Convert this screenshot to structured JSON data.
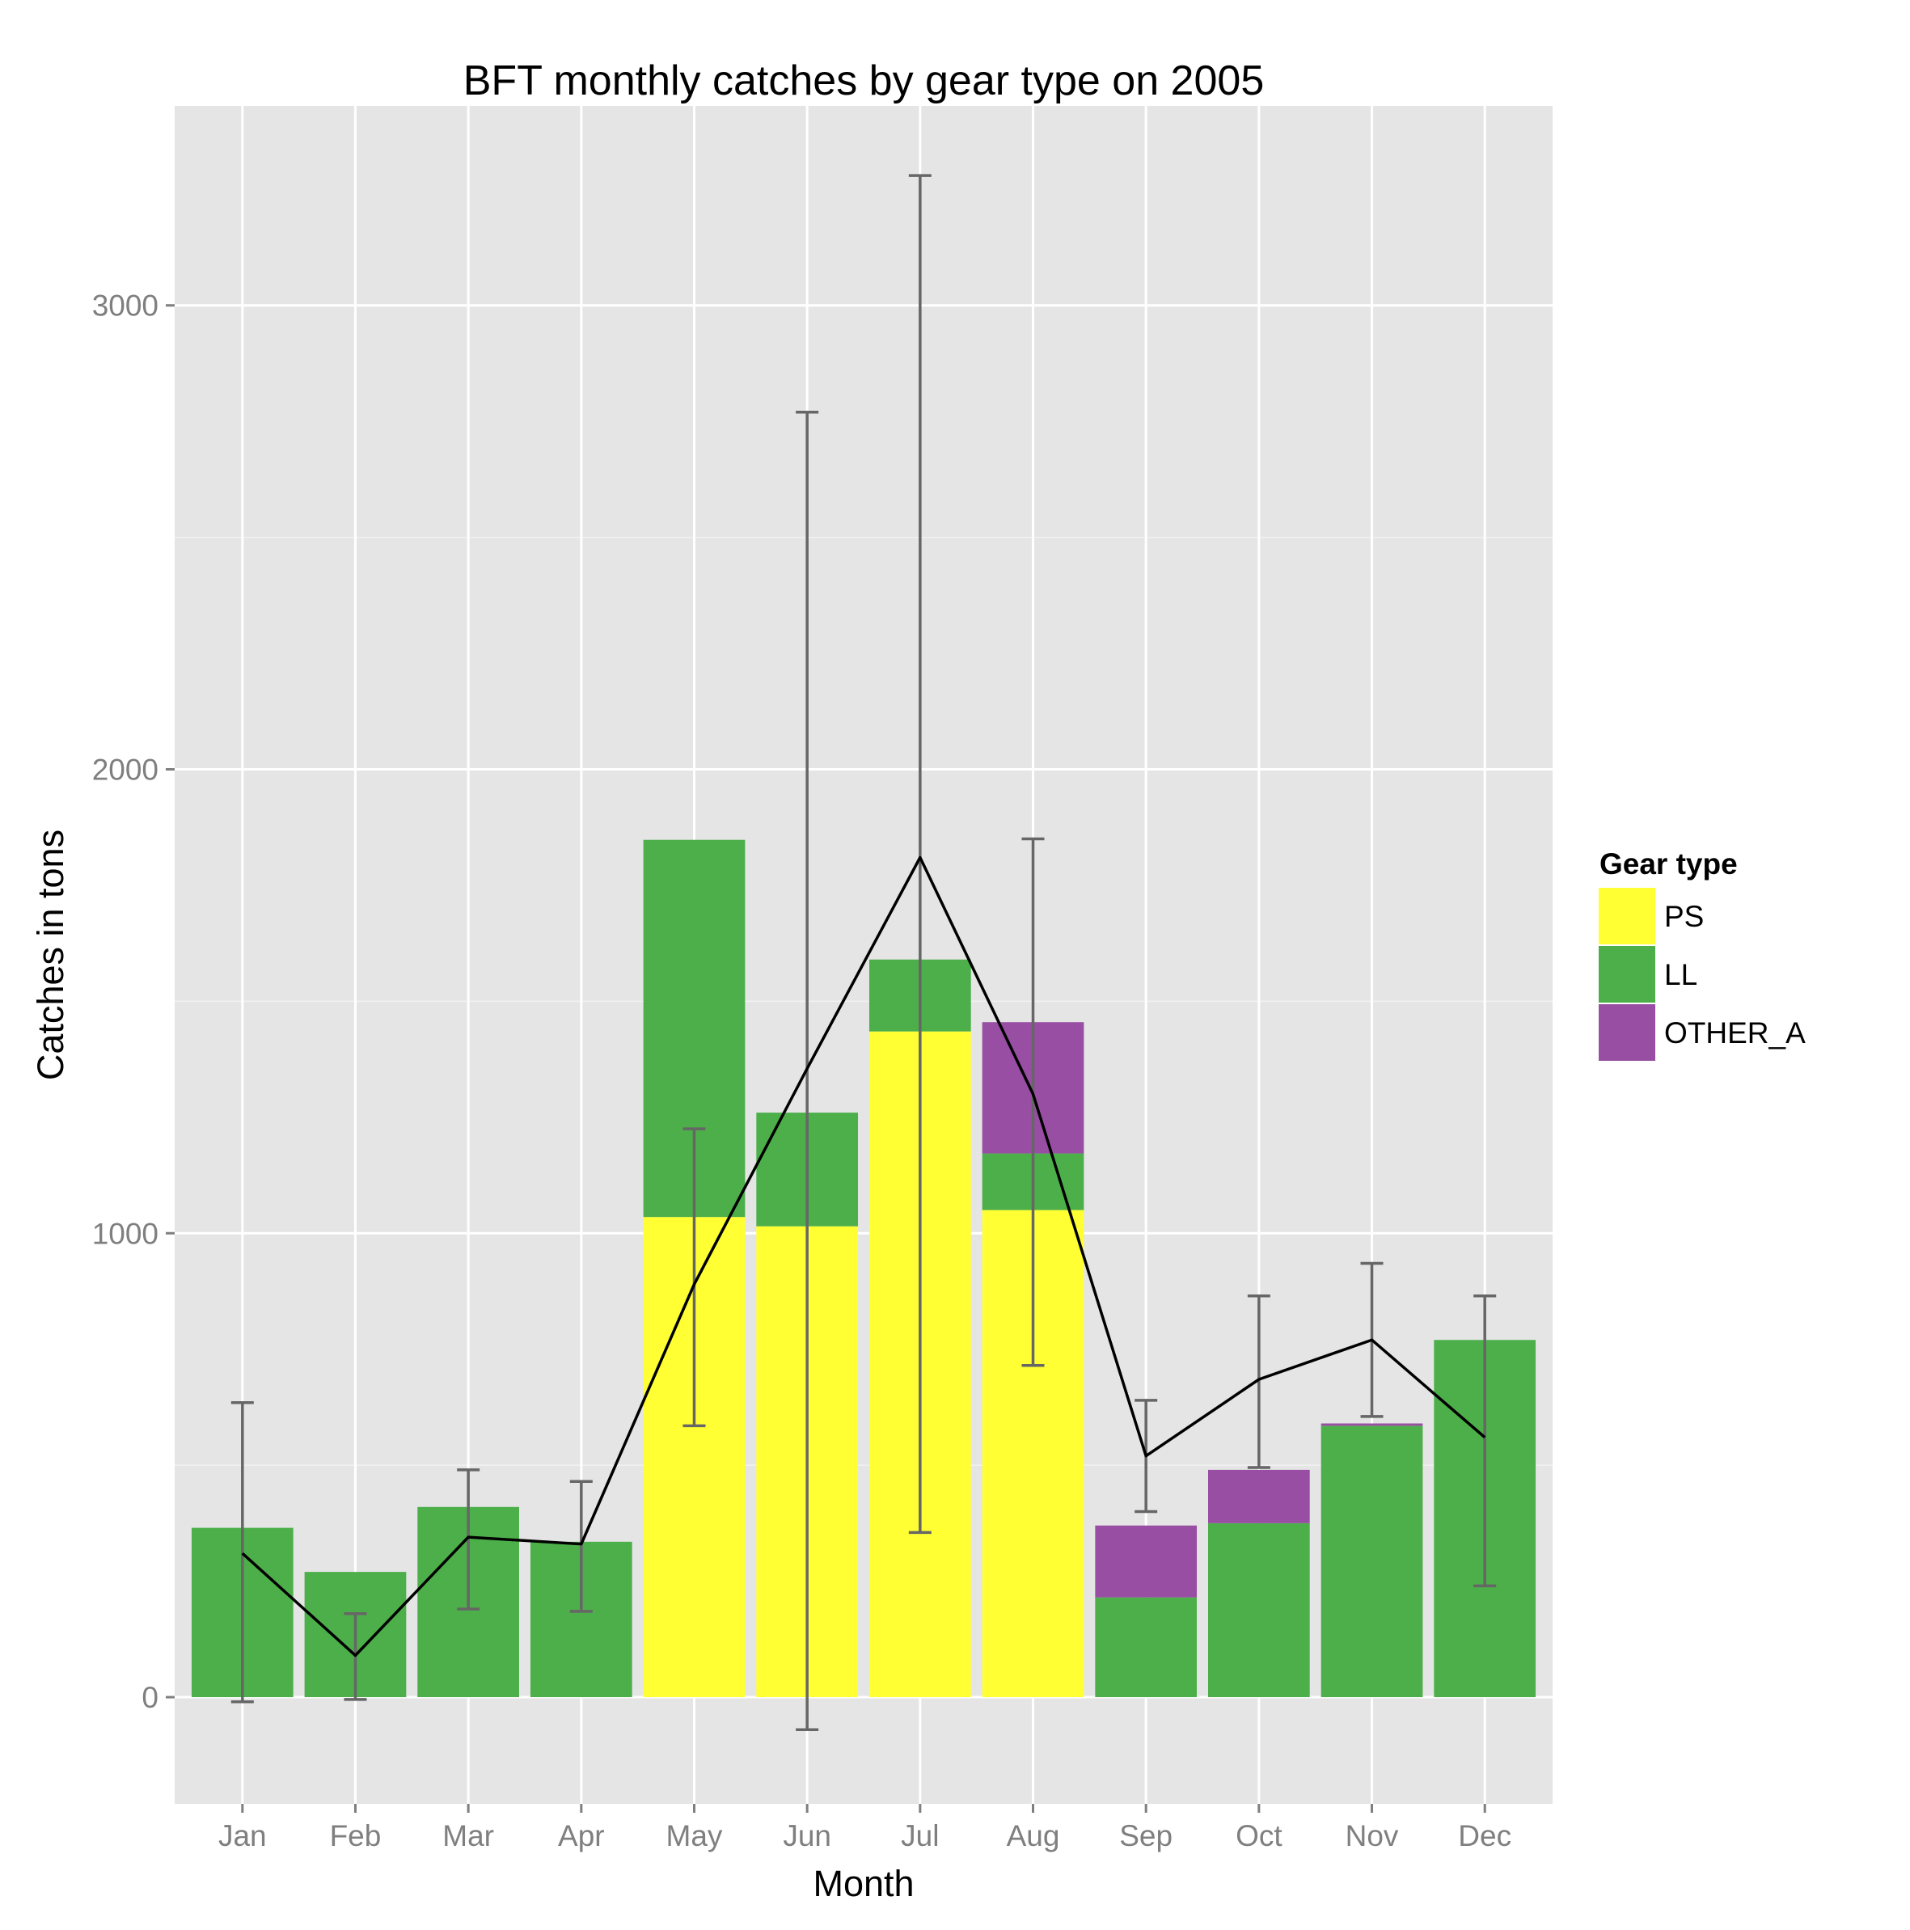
{
  "chart_data": {
    "type": "bar",
    "stacked": true,
    "title": "BFT monthly catches by gear type on 2005",
    "xlabel": "Month",
    "ylabel": "Catches in tons",
    "categories": [
      "Jan",
      "Feb",
      "Mar",
      "Apr",
      "May",
      "Jun",
      "Jul",
      "Aug",
      "Sep",
      "Oct",
      "Nov",
      "Dec"
    ],
    "ylim": [
      -230,
      3430
    ],
    "yticks": [
      0,
      1000,
      2000,
      3000
    ],
    "y_minor_ticks": [
      500,
      1500,
      2500
    ],
    "grid": true,
    "legend": {
      "title": "Gear type",
      "position": "right"
    },
    "series": [
      {
        "name": "PS",
        "color": "#ffff33",
        "values": [
          0,
          0,
          0,
          0,
          1035,
          1015,
          1435,
          1050,
          0,
          0,
          0,
          0
        ]
      },
      {
        "name": "LL",
        "color": "#4daf4a",
        "values": [
          365,
          270,
          410,
          335,
          813,
          245,
          155,
          122,
          215,
          375,
          585,
          770
        ]
      },
      {
        "name": "OTHER_A",
        "color": "#984ea3",
        "values": [
          0,
          0,
          0,
          0,
          0,
          0,
          0,
          283,
          155,
          115,
          5,
          0
        ]
      }
    ],
    "line": {
      "color": "#000000",
      "values": [
        310,
        90,
        345,
        330,
        890,
        1355,
        1810,
        1300,
        520,
        685,
        770,
        560
      ]
    },
    "errorbars": {
      "color": "#666666",
      "lower": [
        -10,
        -5,
        190,
        185,
        585,
        -70,
        355,
        715,
        400,
        495,
        605,
        240
      ],
      "upper": [
        635,
        180,
        490,
        465,
        1225,
        2770,
        3280,
        1850,
        640,
        865,
        935,
        865
      ]
    }
  }
}
